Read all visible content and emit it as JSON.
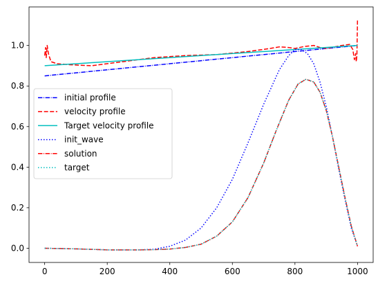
{
  "chart_data": {
    "type": "line",
    "title": "",
    "xlabel": "",
    "ylabel": "",
    "xlim": [
      -50,
      1050
    ],
    "ylim": [
      -0.07,
      1.19
    ],
    "xticks": [
      0,
      200,
      400,
      600,
      800,
      1000
    ],
    "yticks": [
      0.0,
      0.2,
      0.4,
      0.6,
      0.8,
      1.0
    ],
    "xtick_labels": [
      "0",
      "200",
      "400",
      "600",
      "800",
      "1000"
    ],
    "ytick_labels": [
      "0.0",
      "0.2",
      "0.4",
      "0.6",
      "0.8",
      "1.0"
    ],
    "grid": false,
    "legend_position": "center-left",
    "series": [
      {
        "name": "initial profile",
        "color": "#0000ff",
        "linestyle": "dashdot",
        "x": [
          0,
          1000
        ],
        "y": [
          0.85,
          1.0
        ]
      },
      {
        "name": "velocity profile",
        "color": "#ff0000",
        "linestyle": "dashed",
        "x": [
          0,
          3,
          5,
          8,
          12,
          20,
          40,
          80,
          150,
          250,
          350,
          450,
          550,
          650,
          720,
          750,
          780,
          800,
          830,
          860,
          880,
          900,
          950,
          975,
          985,
          990,
          994,
          996,
          998,
          1000
        ],
        "y": [
          0.95,
          0.99,
          0.94,
          1.0,
          0.96,
          0.92,
          0.91,
          0.905,
          0.9,
          0.92,
          0.94,
          0.95,
          0.955,
          0.97,
          0.985,
          0.993,
          0.99,
          0.985,
          0.995,
          1.0,
          0.99,
          0.985,
          1.0,
          1.005,
          0.98,
          0.93,
          0.96,
          0.92,
          0.95,
          1.13
        ]
      },
      {
        "name": "Target velocity profile",
        "color": "#00bfbf",
        "linestyle": "solid",
        "x": [
          0,
          1000
        ],
        "y": [
          0.9,
          1.0
        ]
      },
      {
        "name": "init_wave",
        "color": "#0000ff",
        "linestyle": "dotted",
        "x": [
          0,
          100,
          200,
          300,
          350,
          400,
          450,
          500,
          550,
          600,
          650,
          700,
          750,
          780,
          800,
          820,
          840,
          860,
          880,
          900,
          920,
          940,
          960,
          980,
          1000
        ],
        "y": [
          0.0,
          -0.003,
          -0.008,
          -0.008,
          -0.005,
          0.01,
          0.04,
          0.1,
          0.2,
          0.34,
          0.52,
          0.71,
          0.88,
          0.95,
          0.98,
          0.98,
          0.96,
          0.91,
          0.82,
          0.7,
          0.55,
          0.39,
          0.24,
          0.1,
          0.01
        ]
      },
      {
        "name": "solution",
        "color": "#ff0000",
        "linestyle": "dashdot",
        "x": [
          0,
          100,
          200,
          300,
          350,
          400,
          450,
          500,
          550,
          600,
          650,
          700,
          740,
          780,
          810,
          835,
          860,
          880,
          900,
          920,
          940,
          960,
          980,
          1000
        ],
        "y": [
          0.0,
          -0.003,
          -0.008,
          -0.008,
          -0.007,
          -0.004,
          0.004,
          0.02,
          0.06,
          0.13,
          0.25,
          0.42,
          0.58,
          0.73,
          0.81,
          0.833,
          0.82,
          0.77,
          0.68,
          0.55,
          0.4,
          0.25,
          0.11,
          0.01
        ]
      },
      {
        "name": "target",
        "color": "#00bfbf",
        "linestyle": "dotted",
        "x": [
          0,
          100,
          200,
          300,
          350,
          400,
          450,
          500,
          550,
          600,
          650,
          700,
          740,
          780,
          810,
          835,
          860,
          880,
          900,
          920,
          940,
          960,
          980,
          1000
        ],
        "y": [
          0.0,
          -0.003,
          -0.008,
          -0.008,
          -0.007,
          -0.004,
          0.004,
          0.02,
          0.06,
          0.13,
          0.25,
          0.42,
          0.58,
          0.73,
          0.81,
          0.833,
          0.82,
          0.77,
          0.68,
          0.55,
          0.4,
          0.25,
          0.11,
          0.01
        ]
      }
    ]
  }
}
